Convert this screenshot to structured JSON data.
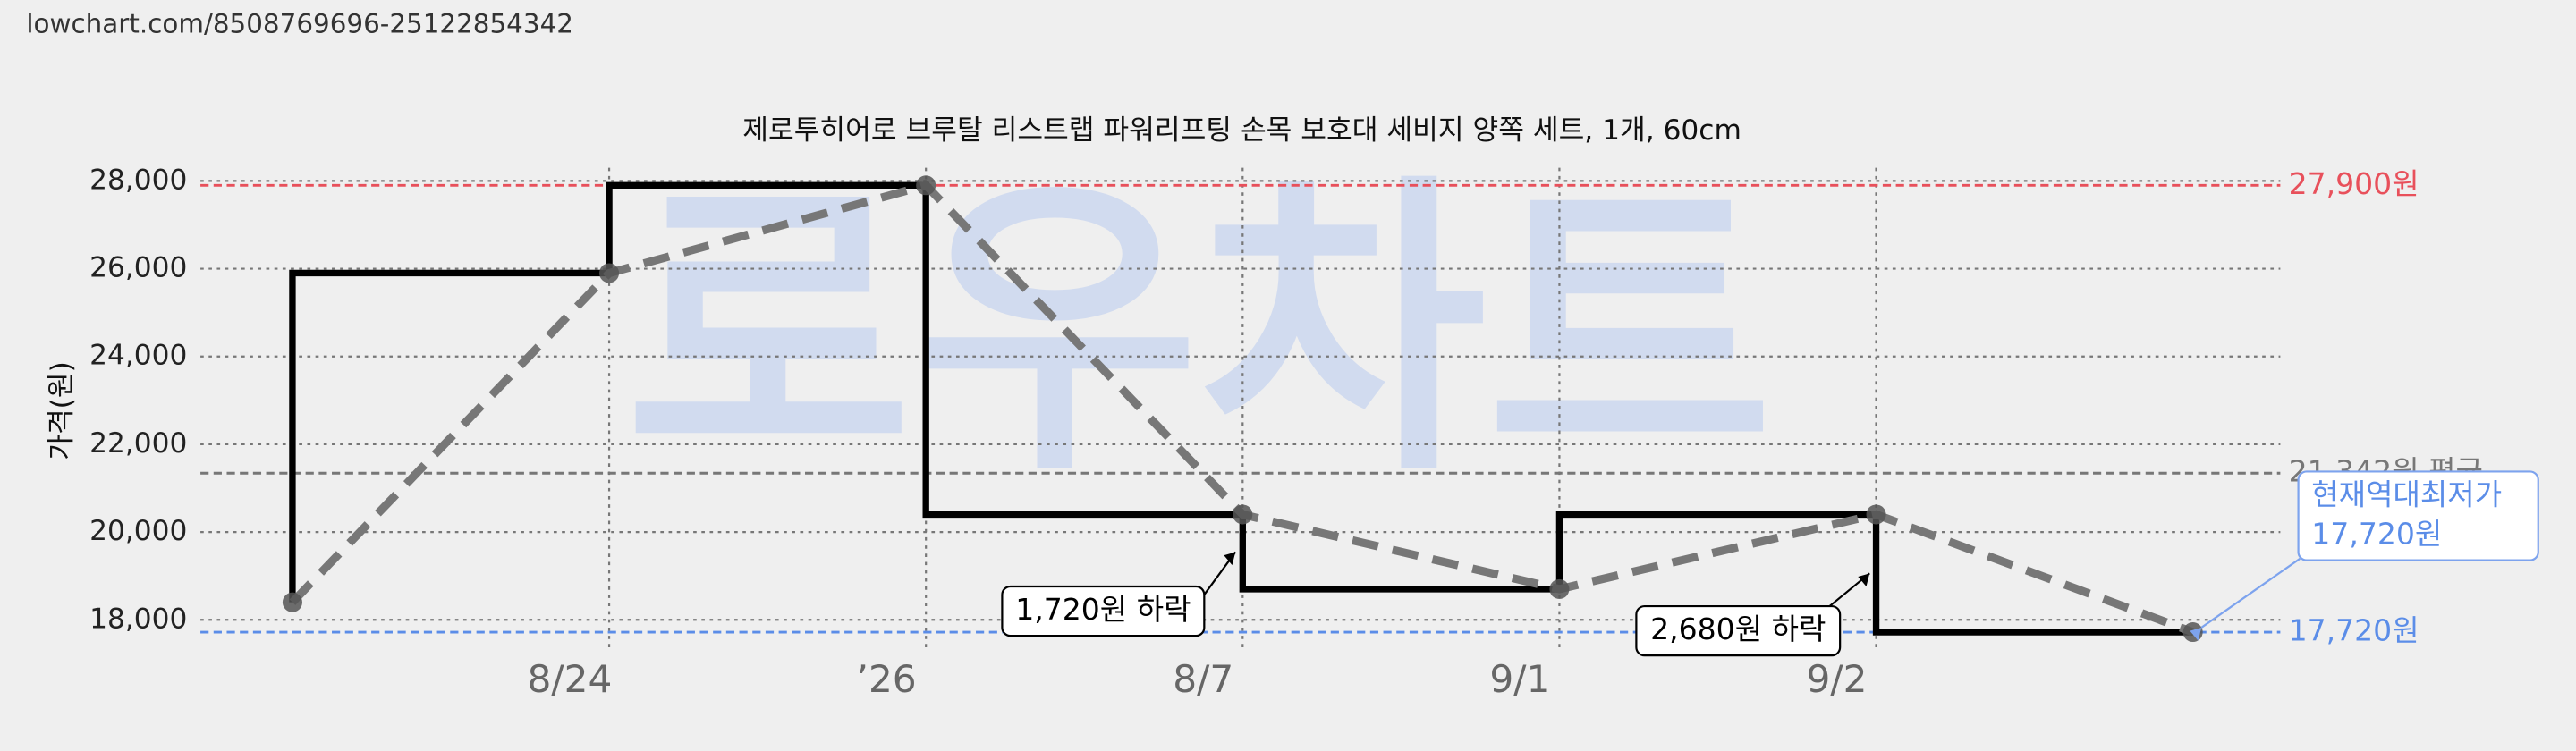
{
  "header": {
    "url": "lowchart.com/8508769696-25122854342"
  },
  "chart_data": {
    "type": "line",
    "title": "제로투히어로 브루탈 리스트랩 파워리프팅 손목 보호대 세비지 양쪽 세트, 1개, 60cm",
    "ylabel": "가격(원)",
    "watermark": "로우차트",
    "categories": [
      null,
      "8/24",
      "’26",
      "8/7",
      "9/1",
      "9/2",
      null
    ],
    "series": [
      {
        "color": "#000000",
        "trend_color": "#777777",
        "values": [
          18400,
          25900,
          27900,
          20400,
          18700,
          20400,
          17720
        ]
      }
    ],
    "ylim": [
      17300,
      28300
    ],
    "yticks": [
      {
        "value": 18000,
        "label": "18,000"
      },
      {
        "value": 20000,
        "label": "20,000"
      },
      {
        "value": 22000,
        "label": "22,000"
      },
      {
        "value": 24000,
        "label": "24,000"
      },
      {
        "value": 26000,
        "label": "26,000"
      },
      {
        "value": 28000,
        "label": "28,000"
      }
    ],
    "grid": true,
    "reference_lines": [
      {
        "value": 27900,
        "label": "27,900원",
        "color": "#e8505b"
      },
      {
        "value": 21342,
        "label": "21,342원 평균",
        "color": "#777777"
      },
      {
        "value": 17720,
        "label": "17,720원",
        "color": "#5b8de8"
      }
    ],
    "annotations": [
      {
        "lines": [
          "1,720원 하락"
        ]
      },
      {
        "lines": [
          "2,680원 하락"
        ]
      },
      {
        "lines": [
          "현재역대최저가",
          "17,720원"
        ]
      }
    ]
  }
}
